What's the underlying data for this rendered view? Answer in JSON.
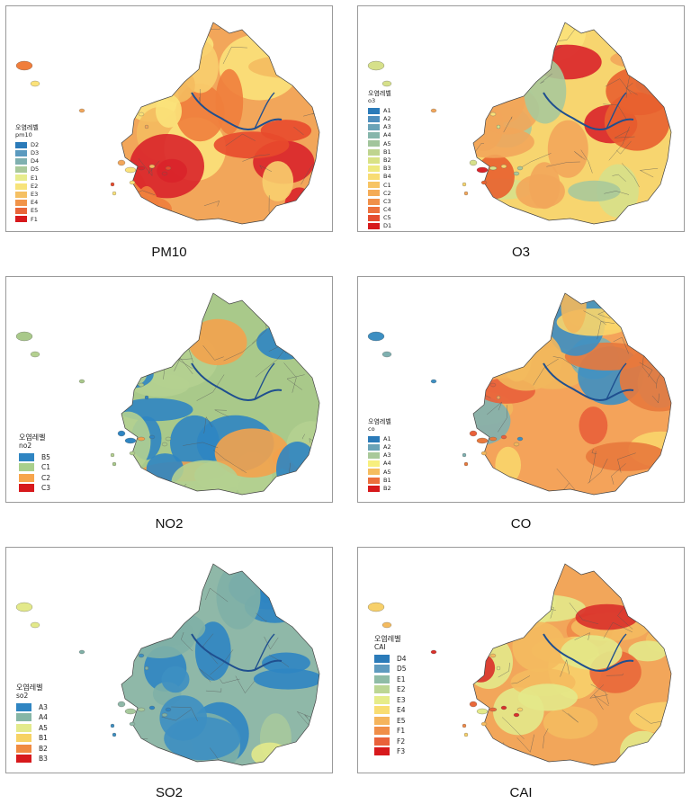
{
  "legend_title": "오염레벨",
  "panels": [
    {
      "caption": "PM10",
      "variable": "pm10",
      "palette": [
        "#f2a65a",
        "#f8cf6e",
        "#fbe27a",
        "#f07e3c",
        "#f4bb5f",
        "#e84a2c",
        "#d9232a"
      ],
      "legend": [
        {
          "label": "D2",
          "color": "#2b7bb9"
        },
        {
          "label": "D3",
          "color": "#5b9abf"
        },
        {
          "label": "D4",
          "color": "#7fb0b0"
        },
        {
          "label": "D5",
          "color": "#a9c99a"
        },
        {
          "label": "E1",
          "color": "#e7ec8c"
        },
        {
          "label": "E2",
          "color": "#f7e37a"
        },
        {
          "label": "E3",
          "color": "#f5c063"
        },
        {
          "label": "E4",
          "color": "#f19449"
        },
        {
          "label": "E5",
          "color": "#e9663a"
        },
        {
          "label": "F1",
          "color": "#d7191c"
        }
      ]
    },
    {
      "caption": "O3",
      "variable": "o3",
      "palette": [
        "#f7d56f",
        "#fbe27a",
        "#d6e08a",
        "#a9c99a",
        "#f2a65a",
        "#e8612f",
        "#d9232a"
      ],
      "legend": [
        {
          "label": "A1",
          "color": "#2b7bb9"
        },
        {
          "label": "A2",
          "color": "#4f8fbe"
        },
        {
          "label": "A3",
          "color": "#6aa3b7"
        },
        {
          "label": "A4",
          "color": "#86b6ab"
        },
        {
          "label": "A5",
          "color": "#a2c59c"
        },
        {
          "label": "B1",
          "color": "#bfd48f"
        },
        {
          "label": "B2",
          "color": "#d9e285"
        },
        {
          "label": "B3",
          "color": "#eee97e"
        },
        {
          "label": "B4",
          "color": "#f8dc73"
        },
        {
          "label": "C1",
          "color": "#f7c464"
        },
        {
          "label": "C2",
          "color": "#f4ab57"
        },
        {
          "label": "C3",
          "color": "#f0904a"
        },
        {
          "label": "C4",
          "color": "#ec713d"
        },
        {
          "label": "C5",
          "color": "#e44d30"
        },
        {
          "label": "D1",
          "color": "#d7191c"
        }
      ]
    },
    {
      "caption": "NO2",
      "variable": "no2",
      "palette": [
        "#a9c98a",
        "#b4d090",
        "#2f85c2",
        "#f3a24c"
      ],
      "legend": [
        {
          "label": "B5",
          "color": "#2f85c2"
        },
        {
          "label": "C1",
          "color": "#a9cf8c"
        },
        {
          "label": "C2",
          "color": "#f7a54c"
        },
        {
          "label": "C3",
          "color": "#d7191c"
        }
      ]
    },
    {
      "caption": "CO",
      "variable": "co",
      "palette": [
        "#f4a35a",
        "#f9d56a",
        "#e8793c",
        "#7fb0b0",
        "#f2b75c",
        "#3d8fc2",
        "#e9603a"
      ],
      "legend": [
        {
          "label": "A1",
          "color": "#2b7bb9"
        },
        {
          "label": "A2",
          "color": "#6aa3b7"
        },
        {
          "label": "A3",
          "color": "#a9c99a"
        },
        {
          "label": "A4",
          "color": "#f7ef7e"
        },
        {
          "label": "A5",
          "color": "#f5bd60"
        },
        {
          "label": "B1",
          "color": "#ec6f3c"
        },
        {
          "label": "B2",
          "color": "#d7191c"
        }
      ]
    },
    {
      "caption": "SO2",
      "variable": "so2",
      "palette": [
        "#8fb8a8",
        "#7fb0a6",
        "#2f85c2",
        "#e3e98a",
        "#3d8fc2",
        "#a7c99c"
      ],
      "legend": [
        {
          "label": "A3",
          "color": "#2f85c2"
        },
        {
          "label": "A4",
          "color": "#86b6a6"
        },
        {
          "label": "A5",
          "color": "#e3ea8c"
        },
        {
          "label": "B1",
          "color": "#f7d264"
        },
        {
          "label": "B2",
          "color": "#f08a40"
        },
        {
          "label": "B3",
          "color": "#d7191c"
        }
      ]
    },
    {
      "caption": "CAI",
      "variable": "CAI",
      "palette": [
        "#f2a65a",
        "#f7d06a",
        "#e9683a",
        "#f4bb5f",
        "#e3e98a",
        "#d9302a",
        "#f08a48"
      ],
      "legend": [
        {
          "label": "D4",
          "color": "#2b7bb9"
        },
        {
          "label": "D5",
          "color": "#5f9bbf"
        },
        {
          "label": "E1",
          "color": "#8fbca6"
        },
        {
          "label": "E2",
          "color": "#bcd694"
        },
        {
          "label": "E3",
          "color": "#e6ec8a"
        },
        {
          "label": "E4",
          "color": "#f8dd72"
        },
        {
          "label": "E5",
          "color": "#f5b45c"
        },
        {
          "label": "F1",
          "color": "#f08e48"
        },
        {
          "label": "F2",
          "color": "#e9613a"
        },
        {
          "label": "F3",
          "color": "#d7191c"
        }
      ]
    }
  ]
}
